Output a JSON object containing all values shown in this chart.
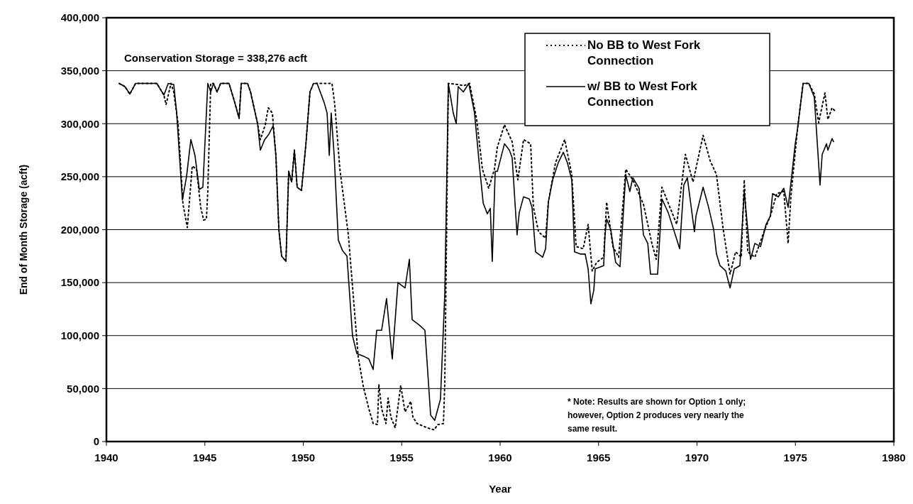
{
  "chart_data": {
    "type": "line",
    "xlabel": "Year",
    "ylabel": "End of Month Storage (acft)",
    "annotations": [
      "Conservation Storage = 338,276 acft",
      "* Note: Results are shown for Option 1 only; however, Option 2 produces very nearly the same result."
    ],
    "xlim": [
      1940,
      1980
    ],
    "xticks": [
      1940,
      1945,
      1950,
      1955,
      1960,
      1965,
      1970,
      1975,
      1980
    ],
    "ylim": [
      0,
      400000
    ],
    "yticks": [
      {
        "value": 0,
        "label": "0"
      },
      {
        "value": 50000,
        "label": "50,000"
      },
      {
        "value": 100000,
        "label": "100,000"
      },
      {
        "value": 150000,
        "label": "150,000"
      },
      {
        "value": 200000,
        "label": "200,000"
      },
      {
        "value": 250000,
        "label": "250,000"
      },
      {
        "value": 300000,
        "label": "300,000"
      },
      {
        "value": 350000,
        "label": "350,000"
      },
      {
        "value": 400000,
        "label": "400,000"
      }
    ],
    "grid": "y",
    "legend": "top right",
    "marker": "none",
    "series": [
      {
        "name": "No BB to West Fork Connection",
        "color": "#000000",
        "line_style": "dotted",
        "x": [
          1940.65,
          1940.94,
          1941.19,
          1941.48,
          1942.56,
          1942.92,
          1943.03,
          1943.28,
          1943.42,
          1943.64,
          1943.89,
          1944.11,
          1944.36,
          1944.58,
          1944.79,
          1944.94,
          1945.08,
          1945.15,
          1945.3,
          1945.44,
          1945.62,
          1945.8,
          1946.23,
          1946.52,
          1946.74,
          1946.85,
          1947.17,
          1947.32,
          1947.68,
          1947.82,
          1948.07,
          1948.22,
          1948.43,
          1948.61,
          1948.76,
          1948.9,
          1949.12,
          1949.26,
          1949.41,
          1949.55,
          1949.69,
          1949.91,
          1950.13,
          1950.34,
          1950.52,
          1951.06,
          1951.46,
          1951.6,
          1951.86,
          1952.29,
          1952.36,
          1952.79,
          1953.05,
          1953.33,
          1953.55,
          1953.77,
          1953.84,
          1953.98,
          1954.2,
          1954.31,
          1954.45,
          1954.67,
          1954.95,
          1955.17,
          1955.46,
          1955.57,
          1955.78,
          1956.29,
          1956.65,
          1956.83,
          1957.12,
          1957.19,
          1957.37,
          1957.84,
          1958.16,
          1958.45,
          1958.81,
          1959.1,
          1959.42,
          1959.71,
          1959.86,
          1960.22,
          1960.61,
          1960.9,
          1961.19,
          1961.55,
          1961.69,
          1961.95,
          1962.31,
          1962.45,
          1962.81,
          1963.28,
          1963.64,
          1963.86,
          1964.22,
          1964.47,
          1964.68,
          1964.9,
          1965.26,
          1965.41,
          1965.73,
          1966.02,
          1966.38,
          1966.74,
          1967.28,
          1967.71,
          1967.93,
          1968.22,
          1968.97,
          1969.41,
          1969.8,
          1970.31,
          1970.67,
          1970.99,
          1971.32,
          1971.68,
          1971.96,
          1972.25,
          1972.4,
          1972.58,
          1972.94,
          1973.44,
          1973.73,
          1974.05,
          1974.41,
          1974.63,
          1974.77,
          1975.1,
          1975.39,
          1975.68,
          1975.96,
          1976.18,
          1976.5,
          1976.65,
          1976.86,
          1977.01
        ],
        "values": [
          338000,
          335000,
          328000,
          338000,
          338000,
          327000,
          318000,
          338000,
          330000,
          300000,
          224000,
          202000,
          260000,
          257000,
          221000,
          209000,
          210000,
          236000,
          338000,
          338000,
          330000,
          338000,
          338000,
          320000,
          305000,
          338000,
          338000,
          330000,
          300000,
          285000,
          299000,
          315000,
          310000,
          270000,
          200000,
          175000,
          170000,
          255000,
          245000,
          275000,
          240000,
          237000,
          280000,
          330000,
          338000,
          338000,
          338000,
          318000,
          257000,
          195000,
          179000,
          80000,
          52000,
          31000,
          17000,
          16000,
          54000,
          31000,
          17000,
          41000,
          23000,
          13000,
          53000,
          28000,
          38000,
          23000,
          17000,
          13000,
          11000,
          16000,
          17000,
          56000,
          338000,
          337000,
          336000,
          338000,
          304000,
          257000,
          239000,
          257000,
          278000,
          299000,
          283000,
          247000,
          285000,
          281000,
          221000,
          198000,
          192000,
          226000,
          263000,
          285000,
          252000,
          184000,
          182000,
          205000,
          161000,
          169000,
          174000,
          226000,
          184000,
          174000,
          257000,
          247000,
          224000,
          187000,
          172000,
          240000,
          205000,
          271000,
          245000,
          289000,
          265000,
          252000,
          202000,
          158000,
          179000,
          174000,
          247000,
          179000,
          174000,
          200000,
          213000,
          234000,
          236000,
          187000,
          231000,
          294000,
          338000,
          338000,
          328000,
          301000,
          329000,
          304000,
          315000,
          312000
        ]
      },
      {
        "name": "w/ BB to West Fork Connection",
        "color": "#000000",
        "line_style": "solid",
        "x": [
          1940.65,
          1940.94,
          1941.19,
          1941.48,
          1942.56,
          1942.92,
          1943.14,
          1943.42,
          1943.57,
          1943.71,
          1943.86,
          1944.07,
          1944.29,
          1944.5,
          1944.72,
          1944.9,
          1945.15,
          1945.3,
          1945.44,
          1945.62,
          1945.8,
          1946.23,
          1946.52,
          1946.74,
          1946.85,
          1947.17,
          1947.32,
          1947.68,
          1947.82,
          1948.04,
          1948.25,
          1948.47,
          1948.61,
          1948.76,
          1948.9,
          1949.12,
          1949.26,
          1949.41,
          1949.55,
          1949.69,
          1949.91,
          1950.13,
          1950.34,
          1950.52,
          1950.7,
          1951.06,
          1951.21,
          1951.32,
          1951.42,
          1951.57,
          1951.78,
          1952,
          1952.22,
          1952.5,
          1952.72,
          1953.12,
          1953.33,
          1953.55,
          1953.73,
          1953.98,
          1954.23,
          1954.52,
          1954.81,
          1955.17,
          1955.39,
          1955.53,
          1955.89,
          1956.18,
          1956.47,
          1956.68,
          1956.97,
          1957.19,
          1957.37,
          1957.62,
          1957.77,
          1957.87,
          1958.13,
          1958.41,
          1958.7,
          1958.95,
          1959.14,
          1959.35,
          1959.5,
          1959.6,
          1959.75,
          1959.86,
          1960.22,
          1960.47,
          1960.61,
          1960.86,
          1960.97,
          1961.19,
          1961.48,
          1961.62,
          1961.8,
          1962.16,
          1962.31,
          1962.45,
          1962.67,
          1962.95,
          1963.21,
          1963.42,
          1963.64,
          1963.78,
          1964.07,
          1964.32,
          1964.47,
          1964.61,
          1964.76,
          1964.83,
          1965.26,
          1965.33,
          1965.41,
          1965.62,
          1965.87,
          1966.09,
          1966.38,
          1966.59,
          1966.74,
          1967.06,
          1967.28,
          1967.5,
          1967.64,
          1968,
          1968.22,
          1968.54,
          1969.12,
          1969.33,
          1969.51,
          1969.87,
          1969.95,
          1970.31,
          1970.59,
          1970.85,
          1970.99,
          1971.17,
          1971.46,
          1971.68,
          1971.89,
          1972.18,
          1972.4,
          1972.5,
          1972.72,
          1972.94,
          1973.23,
          1973.51,
          1973.73,
          1973.84,
          1974.13,
          1974.41,
          1974.63,
          1974.85,
          1974.99,
          1975.1,
          1975.39,
          1975.68,
          1975.96,
          1976.25,
          1976.36,
          1976.58,
          1976.65,
          1976.86,
          1976.94
        ],
        "values": [
          338000,
          335000,
          328000,
          338000,
          338000,
          327000,
          338000,
          337000,
          310000,
          270000,
          228000,
          250000,
          285000,
          270000,
          238000,
          240000,
          338000,
          330000,
          338000,
          330000,
          338000,
          338000,
          320000,
          305000,
          338000,
          338000,
          330000,
          300000,
          275000,
          285000,
          290000,
          298000,
          270000,
          200000,
          175000,
          170000,
          255000,
          245000,
          275000,
          240000,
          237000,
          280000,
          330000,
          338000,
          338000,
          320000,
          310000,
          270000,
          310000,
          270000,
          190000,
          180000,
          175000,
          100000,
          83000,
          80000,
          78000,
          68000,
          105000,
          105000,
          135000,
          78000,
          150000,
          145000,
          172000,
          115000,
          110000,
          105000,
          25000,
          20000,
          40000,
          140000,
          338000,
          310000,
          300000,
          335000,
          330000,
          338000,
          310000,
          260000,
          225000,
          215000,
          220000,
          170000,
          255000,
          255000,
          281000,
          275000,
          268000,
          195000,
          216000,
          231000,
          229000,
          221000,
          179000,
          174000,
          182000,
          226000,
          247000,
          263000,
          273000,
          263000,
          247000,
          179000,
          177000,
          177000,
          163000,
          130000,
          143000,
          163000,
          166000,
          195000,
          210000,
          200000,
          169000,
          165000,
          252000,
          236000,
          249000,
          239000,
          195000,
          187000,
          158000,
          158000,
          229000,
          216000,
          182000,
          242000,
          249000,
          198000,
          213000,
          240000,
          221000,
          200000,
          177000,
          166000,
          161000,
          145000,
          163000,
          166000,
          236000,
          216000,
          172000,
          187000,
          184000,
          205000,
          213000,
          234000,
          231000,
          239000,
          221000,
          257000,
          281000,
          294000,
          338000,
          338000,
          325000,
          242000,
          271000,
          281000,
          275000,
          286000,
          283000
        ]
      }
    ]
  }
}
